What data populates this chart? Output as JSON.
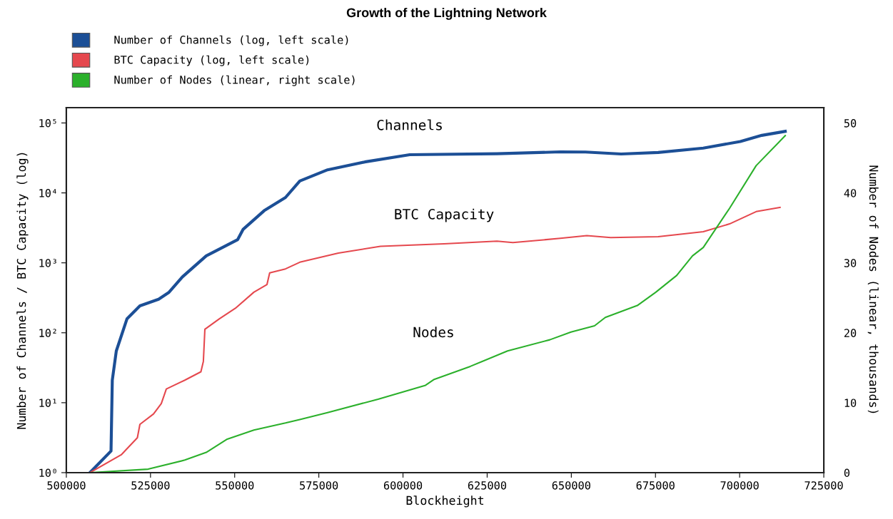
{
  "chart_data": {
    "type": "line",
    "title": "Growth of the Lightning Network",
    "xlabel": "Blockheight",
    "ylabel": "Number of Channels / BTC Capacity (log)",
    "y2label": "Number of Nodes (linear, thousands)",
    "log": "y",
    "grid": false,
    "legend": "top left",
    "marker": "none",
    "line_style": "solid",
    "xlim": [
      500000,
      725000
    ],
    "xticks": [
      500000,
      525000,
      550000,
      575000,
      600000,
      625000,
      650000,
      675000,
      700000,
      725000
    ],
    "ylim": [
      1,
      165600
    ],
    "yticks": [
      {
        "value": 1,
        "label": "10⁰"
      },
      {
        "value": 10,
        "label": "10¹"
      },
      {
        "value": 100,
        "label": "10²"
      },
      {
        "value": 1000,
        "label": "10³"
      },
      {
        "value": 10000,
        "label": "10⁴"
      },
      {
        "value": 100000,
        "label": "10⁵"
      }
    ],
    "y2lim": [
      0,
      52.2
    ],
    "y2ticks": [
      0,
      10,
      20,
      30,
      40,
      50
    ],
    "annotations": [
      "Channels",
      "BTC Capacity",
      "Nodes"
    ],
    "series": [
      {
        "name": "Number of Channels (log, left scale)",
        "color": "#1c4f96",
        "x": [
          507000,
          513270,
          513650,
          514840,
          518000,
          521850,
          527400,
          530500,
          534480,
          541560,
          550900,
          552530,
          558740,
          565100,
          569350,
          577600,
          588650,
          602000,
          627900,
          646750,
          654200,
          664800,
          675800,
          689200,
          700200,
          706600,
          713550
        ],
        "values": [
          1,
          2.04,
          21,
          55,
          158,
          243,
          302,
          380,
          630,
          1260,
          2150,
          3020,
          5560,
          8600,
          14800,
          21400,
          27700,
          35200,
          36300,
          38600,
          38400,
          36000,
          37800,
          43700,
          54300,
          66500,
          75900
        ]
      },
      {
        "name": "BTC Capacity (log, left scale)",
        "color": "#e5484e",
        "x": [
          507000,
          516300,
          521100,
          521850,
          525900,
          528200,
          529700,
          535200,
          539970,
          540700,
          541150,
          545400,
          550200,
          555700,
          559600,
          560400,
          565100,
          569350,
          580800,
          593300,
          612200,
          627900,
          632650,
          646750,
          654600,
          661700,
          675800,
          689200,
          697000,
          704900,
          712000
        ],
        "values": [
          1,
          1.8,
          3.16,
          4.9,
          6.9,
          9.7,
          15.7,
          21,
          27.7,
          39,
          112,
          158,
          224,
          380,
          490,
          720,
          820,
          1020,
          1380,
          1720,
          1870,
          2040,
          1950,
          2240,
          2450,
          2300,
          2370,
          2790,
          3600,
          5400,
          6200
        ]
      },
      {
        "name": "Number of Nodes (linear, right scale)",
        "color": "#2bb02b",
        "axis": "y2",
        "x": [
          507000,
          524300,
          535200,
          541560,
          547800,
          555700,
          565100,
          569350,
          577600,
          592600,
          606700,
          609100,
          620000,
          631060,
          643600,
          649900,
          656900,
          660100,
          669600,
          675100,
          681300,
          686000,
          689200,
          697000,
          704900,
          713550
        ],
        "values": [
          0,
          0.5,
          1.8,
          2.9,
          4.8,
          6.1,
          7.1,
          7.6,
          8.6,
          10.5,
          12.5,
          13.3,
          15.2,
          17.4,
          19.0,
          20.1,
          21.0,
          22.2,
          23.9,
          25.8,
          28.2,
          31.0,
          32.2,
          37.8,
          43.9,
          48.2
        ]
      }
    ]
  }
}
